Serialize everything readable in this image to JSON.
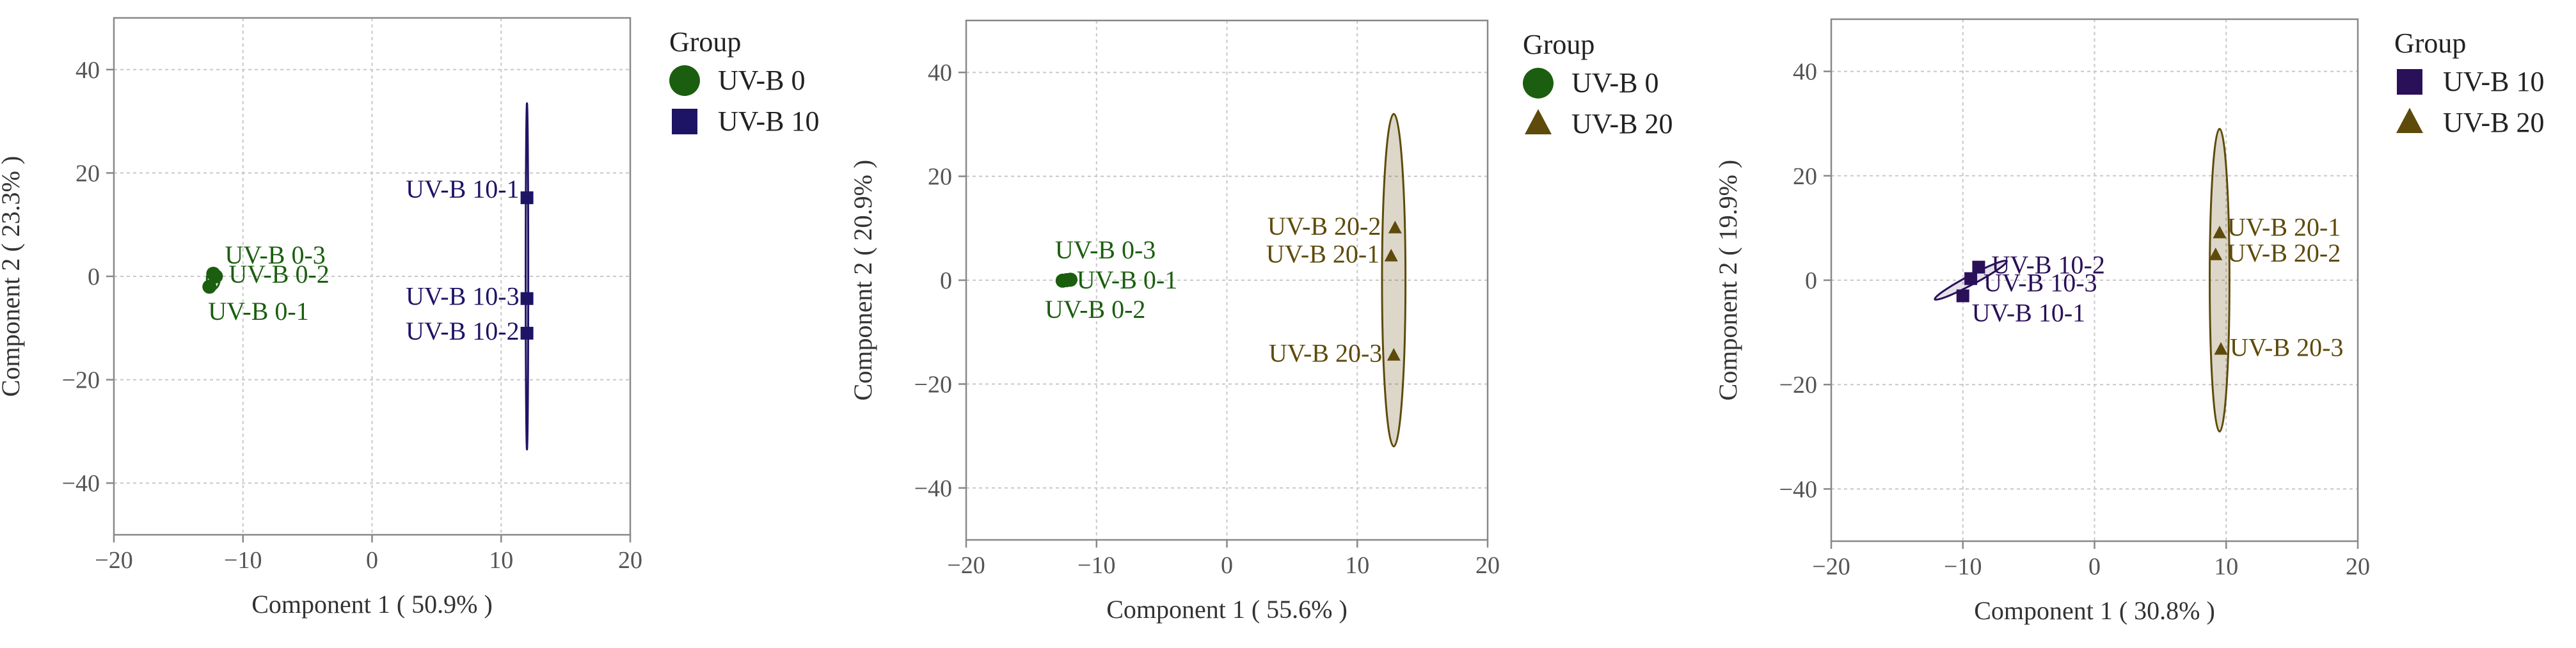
{
  "chart_data": [
    {
      "type": "scatter",
      "xlabel": "Component 1 ( 50.9% )",
      "ylabel": "Component 2 ( 23.3% )",
      "xlim": [
        -20,
        20
      ],
      "ylim": [
        -50,
        50
      ],
      "xticks": [
        -20,
        -10,
        0,
        10,
        20
      ],
      "yticks": [
        -40,
        -20,
        0,
        20,
        40
      ],
      "xtick_labels": [
        "−20",
        "−10",
        "0",
        "10",
        "20"
      ],
      "ytick_labels": [
        "−40",
        "−20",
        "0",
        "20",
        "40"
      ],
      "grid": true,
      "legend_title": "Group",
      "legend_position": "right",
      "series": [
        {
          "name": "UV-B 0",
          "marker": "circle",
          "color": "#1B5E0F",
          "points": [
            {
              "x": -12.3,
              "y": 0.5,
              "label": "UV-B 0-3"
            },
            {
              "x": -12.1,
              "y": 0.0,
              "label": "UV-B 0-2"
            },
            {
              "x": -12.6,
              "y": -2.0,
              "label": "UV-B 0-1"
            }
          ],
          "ellipse": {
            "cx": -12.3,
            "cy": -0.5,
            "rx": 0.5,
            "ry": 2.0,
            "angle": 0
          }
        },
        {
          "name": "UV-B 10",
          "marker": "square",
          "color": "#1E1466",
          "points": [
            {
              "x": 12.0,
              "y": 15.2,
              "label": "UV-B 10-1"
            },
            {
              "x": 12.0,
              "y": -4.3,
              "label": "UV-B 10-3"
            },
            {
              "x": 12.0,
              "y": -11.0,
              "label": "UV-B 10-2"
            }
          ],
          "ellipse": {
            "cx": 12.0,
            "cy": 0.0,
            "rx": 0.04,
            "ry": 33.5,
            "angle": 0
          }
        }
      ]
    },
    {
      "type": "scatter",
      "xlabel": "Component 1 ( 55.6% )",
      "ylabel": "Component 2 ( 20.9% )",
      "xlim": [
        -20,
        20
      ],
      "ylim": [
        -50,
        50
      ],
      "xticks": [
        -20,
        -10,
        0,
        10,
        20
      ],
      "yticks": [
        -40,
        -20,
        0,
        20,
        40
      ],
      "xtick_labels": [
        "−20",
        "−10",
        "0",
        "10",
        "20"
      ],
      "ytick_labels": [
        "−40",
        "−20",
        "0",
        "20",
        "40"
      ],
      "grid": true,
      "legend_title": "Group",
      "legend_position": "right",
      "series": [
        {
          "name": "UV-B 0",
          "marker": "circle",
          "color": "#1B5E0F",
          "points": [
            {
              "x": -12.3,
              "y": 0.0,
              "label": "UV-B 0-3"
            },
            {
              "x": -12.6,
              "y": -0.1,
              "label": "UV-B 0-1"
            },
            {
              "x": -12.0,
              "y": 0.1,
              "label": "UV-B 0-2"
            }
          ],
          "ellipse": {
            "cx": -12.3,
            "cy": 0.0,
            "rx": 0.7,
            "ry": 0.9,
            "angle": 0
          }
        },
        {
          "name": "UV-B 20",
          "marker": "triangle",
          "color": "#5E4A0A",
          "points": [
            {
              "x": 12.9,
              "y": 10.0,
              "label": "UV-B 20-2"
            },
            {
              "x": 12.6,
              "y": 4.6,
              "label": "UV-B 20-1"
            },
            {
              "x": 12.8,
              "y": -14.5,
              "label": "UV-B 20-3"
            }
          ],
          "ellipse": {
            "cx": 12.8,
            "cy": 0.0,
            "rx": 0.9,
            "ry": 32.0,
            "angle": 0
          }
        }
      ]
    },
    {
      "type": "scatter",
      "xlabel": "Component 1 ( 30.8% )",
      "ylabel": "Component 2 ( 19.9% )",
      "xlim": [
        -20,
        20
      ],
      "ylim": [
        -50,
        50
      ],
      "xticks": [
        -20,
        -10,
        0,
        10,
        20
      ],
      "yticks": [
        -40,
        -20,
        0,
        20,
        40
      ],
      "xtick_labels": [
        "−20",
        "−10",
        "0",
        "10",
        "20"
      ],
      "ytick_labels": [
        "−40",
        "−20",
        "0",
        "20",
        "40"
      ],
      "grid": true,
      "legend_title": "Group",
      "legend_position": "right",
      "series": [
        {
          "name": "UV-B 10",
          "marker": "square",
          "color": "#2A1059",
          "points": [
            {
              "x": -8.8,
              "y": 2.5,
              "label": "UV-B 10-2"
            },
            {
              "x": -9.4,
              "y": 0.3,
              "label": "UV-B 10-3"
            },
            {
              "x": -10.0,
              "y": -3.0,
              "label": "UV-B 10-1"
            }
          ],
          "ellipse": {
            "cx": -9.4,
            "cy": 0.0,
            "rx": 0.35,
            "ry": 7.8,
            "angle": 62
          }
        },
        {
          "name": "UV-B 20",
          "marker": "triangle",
          "color": "#5E4A0A",
          "points": [
            {
              "x": 9.5,
              "y": 9.0,
              "label": "UV-B 20-1"
            },
            {
              "x": 9.2,
              "y": 4.8,
              "label": "UV-B 20-2"
            },
            {
              "x": 9.6,
              "y": -13.3,
              "label": "UV-B 20-3"
            }
          ],
          "ellipse": {
            "cx": 9.5,
            "cy": 0.0,
            "rx": 0.75,
            "ry": 29.0,
            "angle": 0
          }
        }
      ]
    }
  ]
}
